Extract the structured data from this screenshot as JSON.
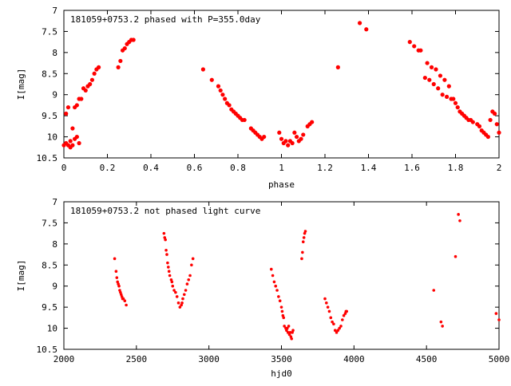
{
  "chart_data": [
    {
      "type": "scatter",
      "title": "181059+0753.2 phased with P=355.0day",
      "xlabel": "phase",
      "ylabel": "I[mag]",
      "xlim": [
        0,
        2
      ],
      "ylim": [
        7,
        10.5
      ],
      "y_inverted": true,
      "grid": false,
      "xticks": [
        0,
        0.2,
        0.4,
        0.6,
        0.8,
        1,
        1.2,
        1.4,
        1.6,
        1.8,
        2
      ],
      "yticks": [
        7,
        7.5,
        8,
        8.5,
        9,
        9.5,
        10,
        10.5
      ],
      "marker": "filled-circle",
      "color": "#ff0000",
      "series": [
        {
          "x": [
            0.0,
            0.01,
            0.01,
            0.02,
            0.02,
            0.03,
            0.03,
            0.04,
            0.04,
            0.05,
            0.05,
            0.06,
            0.06,
            0.07,
            0.07,
            0.08,
            0.09,
            0.1,
            0.11,
            0.12,
            0.13,
            0.14,
            0.15,
            0.16,
            0.25,
            0.26,
            0.27,
            0.28,
            0.29,
            0.3,
            0.31,
            0.32,
            0.64,
            0.68,
            0.71,
            0.72,
            0.73,
            0.74,
            0.75,
            0.76,
            0.77,
            0.78,
            0.79,
            0.8,
            0.81,
            0.82,
            0.83,
            0.86,
            0.87,
            0.88,
            0.89,
            0.9,
            0.91,
            0.92,
            0.99,
            1.0,
            1.01,
            1.02,
            1.03,
            1.04,
            1.05,
            1.06,
            1.07,
            1.08,
            1.09,
            1.1,
            1.12,
            1.13,
            1.14,
            1.26,
            1.36,
            1.39,
            1.59,
            1.61,
            1.63,
            1.64,
            1.66,
            1.67,
            1.68,
            1.69,
            1.7,
            1.71,
            1.72,
            1.73,
            1.74,
            1.75,
            1.76,
            1.77,
            1.78,
            1.79,
            1.8,
            1.81,
            1.82,
            1.83,
            1.84,
            1.85,
            1.86,
            1.87,
            1.88,
            1.9,
            1.91,
            1.92,
            1.93,
            1.94,
            1.95,
            1.96,
            1.97,
            1.98,
            1.99,
            2.0
          ],
          "y": [
            10.2,
            9.45,
            10.15,
            9.3,
            10.2,
            10.1,
            10.25,
            10.2,
            9.8,
            10.05,
            9.3,
            10.0,
            9.25,
            10.15,
            9.1,
            9.1,
            8.85,
            8.9,
            8.8,
            8.75,
            8.65,
            8.5,
            8.4,
            8.35,
            8.35,
            8.2,
            7.95,
            7.9,
            7.8,
            7.75,
            7.7,
            7.7,
            8.4,
            8.65,
            8.8,
            8.9,
            9.0,
            9.1,
            9.2,
            9.25,
            9.35,
            9.4,
            9.45,
            9.5,
            9.55,
            9.6,
            9.6,
            9.8,
            9.85,
            9.9,
            9.95,
            10.0,
            10.05,
            10.0,
            9.9,
            10.05,
            10.15,
            10.1,
            10.2,
            10.1,
            10.15,
            9.9,
            10.0,
            10.1,
            10.05,
            9.95,
            9.75,
            9.7,
            9.65,
            8.35,
            7.3,
            7.45,
            7.75,
            7.85,
            7.95,
            7.95,
            8.6,
            8.25,
            8.65,
            8.35,
            8.75,
            8.4,
            8.85,
            8.55,
            9.0,
            8.65,
            9.05,
            8.8,
            9.1,
            9.1,
            9.2,
            9.3,
            9.4,
            9.45,
            9.5,
            9.55,
            9.6,
            9.6,
            9.65,
            9.7,
            9.75,
            9.85,
            9.9,
            9.95,
            10.0,
            9.6,
            9.4,
            9.45,
            9.7,
            9.9
          ]
        }
      ]
    },
    {
      "type": "scatter",
      "title": "181059+0753.2 not phased light curve",
      "xlabel": "hjd0",
      "ylabel": "I[mag]",
      "xlim": [
        2000,
        5000
      ],
      "ylim": [
        7,
        10.5
      ],
      "y_inverted": true,
      "grid": false,
      "xticks": [
        2000,
        2500,
        3000,
        3500,
        4000,
        4500,
        5000
      ],
      "yticks": [
        7,
        7.5,
        8,
        8.5,
        9,
        9.5,
        10,
        10.5
      ],
      "marker": "small-filled-circle",
      "color": "#ff0000",
      "series": [
        {
          "x": [
            2350,
            2360,
            2365,
            2370,
            2375,
            2380,
            2385,
            2390,
            2395,
            2400,
            2405,
            2410,
            2420,
            2430,
            2690,
            2695,
            2700,
            2705,
            2710,
            2715,
            2720,
            2725,
            2730,
            2740,
            2745,
            2750,
            2760,
            2770,
            2780,
            2790,
            2800,
            2810,
            2815,
            2820,
            2830,
            2840,
            2850,
            2860,
            2870,
            2880,
            2890,
            3430,
            3440,
            3450,
            3460,
            3470,
            3480,
            3490,
            3500,
            3505,
            3510,
            3515,
            3520,
            3530,
            3535,
            3540,
            3545,
            3550,
            3555,
            3560,
            3565,
            3570,
            3575,
            3580,
            3640,
            3645,
            3650,
            3655,
            3660,
            3665,
            3800,
            3810,
            3820,
            3830,
            3840,
            3850,
            3860,
            3870,
            3880,
            3890,
            3900,
            3910,
            3920,
            3930,
            3940,
            3945,
            3950,
            4550,
            4600,
            4610,
            4700,
            4720,
            4730,
            4980,
            5000
          ],
          "y": [
            8.35,
            8.65,
            8.8,
            8.9,
            8.95,
            9.0,
            9.1,
            9.15,
            9.2,
            9.25,
            9.3,
            9.3,
            9.35,
            9.45,
            7.75,
            7.85,
            7.9,
            8.15,
            8.25,
            8.45,
            8.55,
            8.65,
            8.75,
            8.85,
            8.9,
            9.0,
            9.1,
            9.15,
            9.25,
            9.4,
            9.5,
            9.45,
            9.4,
            9.3,
            9.2,
            9.1,
            8.95,
            8.85,
            8.75,
            8.5,
            8.35,
            8.6,
            8.75,
            8.9,
            9.0,
            9.1,
            9.25,
            9.35,
            9.5,
            9.6,
            9.7,
            9.75,
            9.95,
            10.0,
            10.05,
            10.0,
            10.1,
            9.95,
            10.15,
            10.1,
            10.2,
            10.25,
            10.1,
            10.05,
            8.35,
            8.2,
            7.95,
            7.85,
            7.75,
            7.7,
            9.3,
            9.4,
            9.5,
            9.6,
            9.75,
            9.85,
            9.9,
            10.05,
            10.1,
            10.05,
            10.0,
            9.95,
            9.8,
            9.7,
            9.65,
            9.6,
            9.6,
            9.1,
            9.85,
            9.95,
            8.3,
            7.3,
            7.45,
            9.65,
            9.8
          ]
        }
      ]
    }
  ]
}
